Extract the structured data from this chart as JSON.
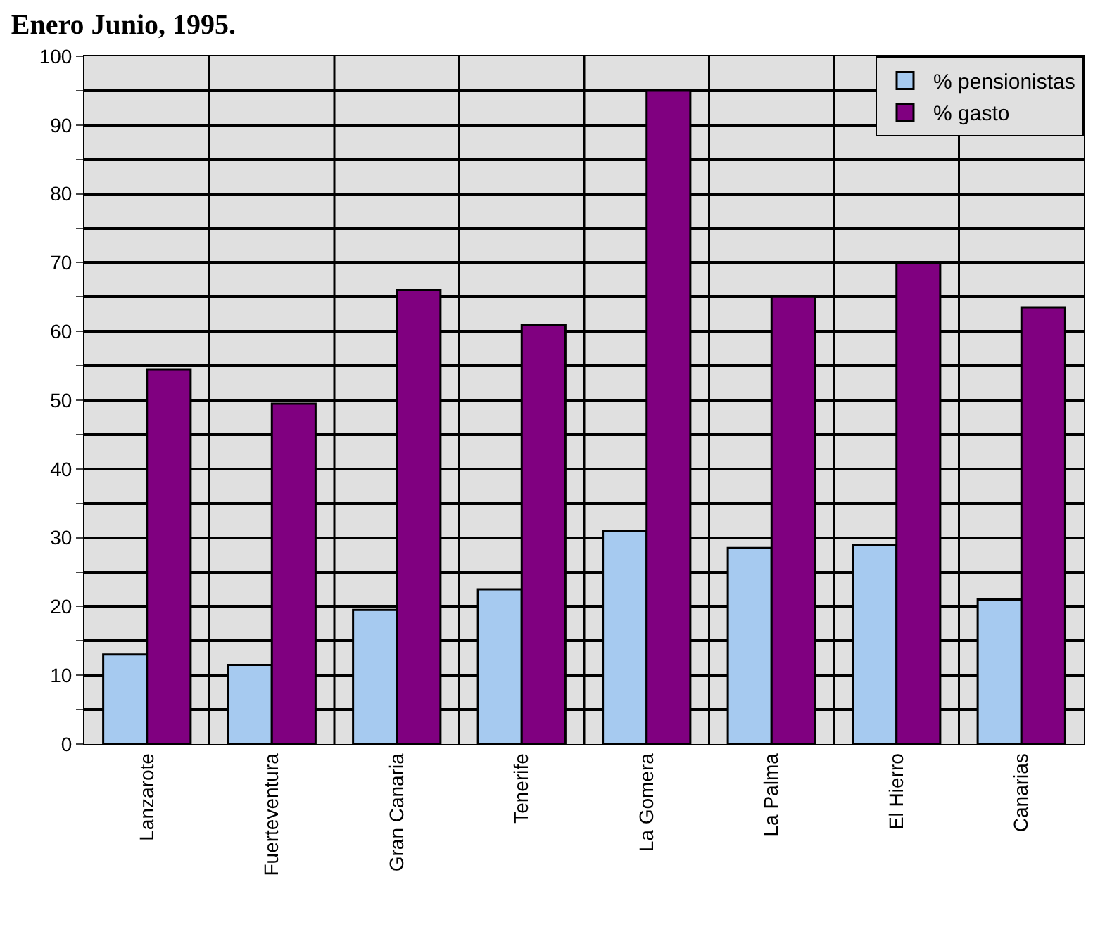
{
  "chart_data": {
    "type": "bar",
    "title": "Enero Junio, 1995.",
    "categories": [
      "Lanzarote",
      "Fuerteventura",
      "Gran Canaria",
      "Tenerife",
      "La Gomera",
      "La Palma",
      "El Hierro",
      "Canarias"
    ],
    "series": [
      {
        "name": "% pensionistas",
        "color": "#a6caf0",
        "values": [
          13,
          11.5,
          19.5,
          22.5,
          31,
          28.5,
          29,
          21
        ]
      },
      {
        "name": "% gasto",
        "color": "#800080",
        "values": [
          54.5,
          49.5,
          66,
          61,
          95,
          65,
          70,
          63.5
        ]
      }
    ],
    "ylim": [
      0,
      100
    ],
    "yticks": [
      0,
      {
        "value": 5,
        "label": null
      },
      10,
      {
        "value": 15,
        "label": null
      },
      20,
      {
        "value": 25,
        "label": null
      },
      30,
      {
        "value": 35,
        "label": null
      },
      40,
      {
        "value": 45,
        "label": null
      },
      50,
      {
        "value": 55,
        "label": null
      },
      60,
      {
        "value": 65,
        "label": null
      },
      70,
      {
        "value": 75,
        "label": null
      },
      80,
      {
        "value": 85,
        "label": null
      },
      90,
      {
        "value": 95,
        "label": null
      },
      100
    ],
    "grid": true,
    "legend": "top right"
  }
}
